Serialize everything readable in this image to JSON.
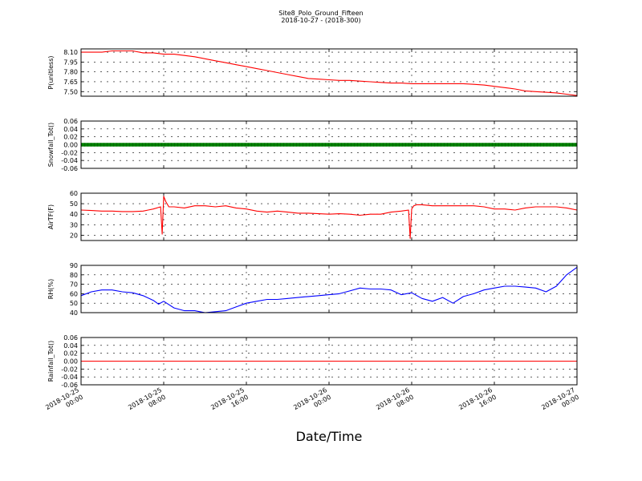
{
  "figure": {
    "title": "Site8_Polo_Ground_Fifteen",
    "subtitle": "2018-10-27 - (2018-300)",
    "xlabel": "Date/Time"
  },
  "chart_data": [
    {
      "type": "line",
      "ylabel": "P(unitless)",
      "ylim": [
        7.43,
        8.15
      ],
      "yticks": [
        "8.10",
        "7.95",
        "7.80",
        "7.65",
        "7.50"
      ],
      "ytick_values": [
        8.1,
        7.95,
        7.8,
        7.65,
        7.5
      ],
      "grid": true,
      "series": [
        {
          "color": "#ff0000",
          "x": [
            0,
            1,
            2,
            3,
            4,
            5,
            6,
            7,
            8,
            9,
            10,
            11,
            12,
            13,
            14,
            15,
            16,
            17,
            18,
            19,
            20,
            21,
            22,
            23,
            24,
            25,
            26,
            27,
            28,
            29,
            30,
            31,
            32,
            33,
            34,
            35,
            36,
            37,
            38,
            39,
            40,
            41,
            42,
            43,
            44,
            45,
            46,
            47,
            48
          ],
          "values": [
            8.1,
            8.1,
            8.1,
            8.12,
            8.12,
            8.12,
            8.09,
            8.09,
            8.07,
            8.07,
            8.05,
            8.03,
            8.0,
            7.97,
            7.94,
            7.91,
            7.88,
            7.85,
            7.82,
            7.79,
            7.76,
            7.73,
            7.7,
            7.69,
            7.68,
            7.67,
            7.67,
            7.66,
            7.65,
            7.64,
            7.63,
            7.63,
            7.62,
            7.62,
            7.62,
            7.62,
            7.62,
            7.62,
            7.61,
            7.6,
            7.58,
            7.56,
            7.54,
            7.51,
            7.5,
            7.49,
            7.48,
            7.46,
            7.44
          ]
        }
      ]
    },
    {
      "type": "line",
      "ylabel": "Snowfall_Tot()",
      "ylim": [
        -0.06,
        0.06
      ],
      "yticks": [
        "0.06",
        "0.04",
        "0.02",
        "0.00",
        "-0.02",
        "-0.04",
        "-0.06"
      ],
      "ytick_values": [
        0.06,
        0.04,
        0.02,
        0.0,
        -0.02,
        -0.04,
        -0.06
      ],
      "grid": true,
      "series": [
        {
          "color": "#008000",
          "marker": "dot",
          "x": [
            0,
            48
          ],
          "values": [
            0.0,
            0.0
          ]
        }
      ]
    },
    {
      "type": "line",
      "ylabel": "AirTF(F)",
      "ylim": [
        15,
        60
      ],
      "yticks": [
        "60",
        "50",
        "40",
        "30",
        "20"
      ],
      "ytick_values": [
        60,
        50,
        40,
        30,
        20
      ],
      "grid": true,
      "series": [
        {
          "color": "#ff0000",
          "x": [
            0,
            1,
            2,
            3,
            4,
            5,
            6,
            6.5,
            7,
            7.7,
            7.85,
            8,
            8.2,
            8.5,
            9,
            10,
            11,
            12,
            13,
            14,
            15,
            16,
            17,
            18,
            19,
            20,
            21,
            22,
            23,
            24,
            25,
            26,
            27,
            28,
            29,
            30,
            31,
            31.7,
            31.85,
            32,
            32.2,
            32.5,
            33,
            34,
            35,
            36,
            37,
            38,
            39,
            40,
            41,
            42,
            43,
            44,
            45,
            46,
            47,
            48
          ],
          "values": [
            44,
            43.5,
            43,
            43,
            42.5,
            42.5,
            43,
            44,
            45,
            47,
            21,
            57,
            52,
            47,
            47,
            46,
            48,
            48,
            47,
            48,
            46,
            45,
            43,
            42,
            43,
            42,
            41,
            41,
            40.5,
            40,
            40.5,
            40,
            39,
            40,
            40,
            42,
            43,
            44,
            17,
            45,
            48,
            49,
            49,
            48,
            48,
            48,
            48,
            48,
            47,
            45,
            45,
            44,
            46,
            47,
            47,
            47,
            46,
            44
          ]
        }
      ]
    },
    {
      "type": "line",
      "ylabel": "RH(%)",
      "ylim": [
        40,
        90
      ],
      "yticks": [
        "90",
        "80",
        "70",
        "60",
        "50",
        "40"
      ],
      "ytick_values": [
        90,
        80,
        70,
        60,
        50,
        40
      ],
      "grid": true,
      "series": [
        {
          "color": "#0000ff",
          "x": [
            0,
            1,
            2,
            3,
            4,
            5,
            6,
            7,
            7.5,
            8,
            9,
            10,
            11,
            12,
            13,
            14,
            15,
            16,
            17,
            18,
            19,
            20,
            21,
            22,
            23,
            24,
            25,
            26,
            27,
            28,
            29,
            30,
            31,
            32,
            33,
            34,
            35,
            36,
            37,
            38,
            39,
            40,
            41,
            42,
            43,
            44,
            45,
            46,
            47,
            48
          ],
          "values": [
            58,
            62,
            64,
            64,
            62,
            61,
            58,
            53,
            49,
            52,
            45,
            42,
            42,
            40,
            41,
            42,
            46,
            50,
            52,
            54,
            54,
            55,
            56,
            57,
            58,
            59,
            60,
            63,
            66,
            65,
            65,
            64,
            59,
            61,
            55,
            52,
            56,
            50,
            57,
            60,
            64,
            66,
            68,
            68,
            67,
            66,
            62,
            68,
            80,
            88
          ]
        }
      ]
    },
    {
      "type": "line",
      "ylabel": "Rainfall_Tot()",
      "ylim": [
        -0.06,
        0.06
      ],
      "yticks": [
        "0.06",
        "0.04",
        "0.02",
        "0.00",
        "-0.02",
        "-0.04",
        "-0.06"
      ],
      "ytick_values": [
        0.06,
        0.04,
        0.02,
        0.0,
        -0.02,
        -0.04,
        -0.06
      ],
      "grid": true,
      "series": [
        {
          "color": "#ff0000",
          "x": [
            0,
            48
          ],
          "values": [
            0.0,
            0.0
          ]
        }
      ]
    }
  ],
  "x_axis": {
    "range_hours": [
      0,
      48
    ],
    "tick_hours": [
      0,
      8,
      16,
      24,
      32,
      40,
      48
    ],
    "tick_labels": [
      [
        "2018-10-25",
        "00:00"
      ],
      [
        "2018-10-25",
        "08:00"
      ],
      [
        "2018-10-25",
        "16:00"
      ],
      [
        "2018-10-26",
        "00:00"
      ],
      [
        "2018-10-26",
        "08:00"
      ],
      [
        "2018-10-26",
        "16:00"
      ],
      [
        "2018-10-27",
        "00:00"
      ]
    ]
  }
}
